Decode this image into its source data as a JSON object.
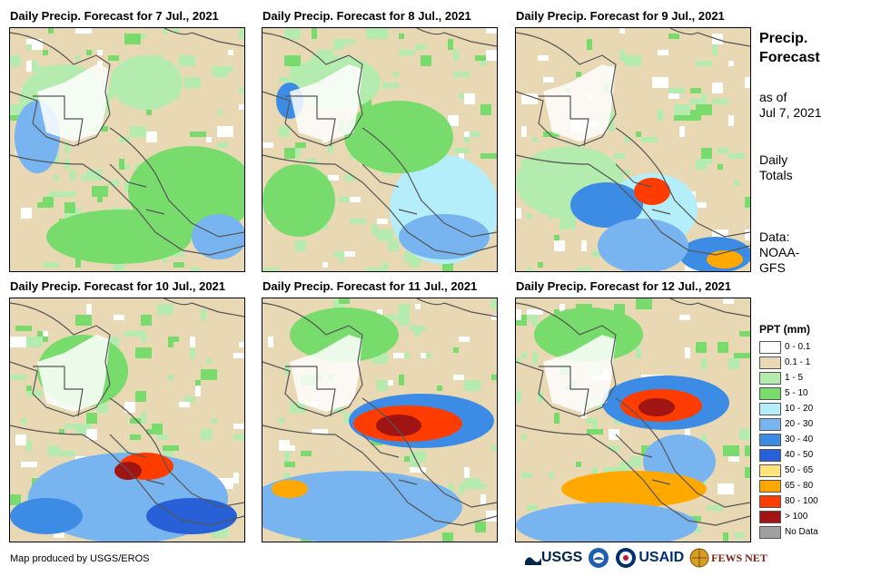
{
  "panels": [
    {
      "title": "Daily Precip. Forecast for 7 Jul., 2021"
    },
    {
      "title": "Daily Precip. Forecast for 8 Jul., 2021"
    },
    {
      "title": "Daily Precip. Forecast for 9 Jul., 2021"
    },
    {
      "title": "Daily Precip. Forecast for 10 Jul., 2021"
    },
    {
      "title": "Daily Precip. Forecast for 11 Jul., 2021"
    },
    {
      "title": "Daily Precip. Forecast for 12 Jul., 2021"
    }
  ],
  "side": {
    "title_line1": "Precip.",
    "title_line2": "Forecast",
    "asof_line1": "as of",
    "asof_line2": "Jul 7, 2021",
    "totals_line1": "Daily",
    "totals_line2": "Totals",
    "data_line1": "Data:",
    "data_line2": "NOAA-",
    "data_line3": "GFS"
  },
  "legend": {
    "title": "PPT (mm)",
    "items": [
      {
        "label": "0 - 0.1",
        "color": "#ffffff"
      },
      {
        "label": "0.1 - 1",
        "color": "#e8d8b4"
      },
      {
        "label": "1 - 5",
        "color": "#b4ecb0"
      },
      {
        "label": "5 - 10",
        "color": "#78dc6c"
      },
      {
        "label": "10 - 20",
        "color": "#b4eefa"
      },
      {
        "label": "20 - 30",
        "color": "#78b4f0"
      },
      {
        "label": "30 - 40",
        "color": "#3c8ce6"
      },
      {
        "label": "40 - 50",
        "color": "#2860d8"
      },
      {
        "label": "50 - 65",
        "color": "#ffe47c"
      },
      {
        "label": "65 - 80",
        "color": "#ffa800"
      },
      {
        "label": "80 - 100",
        "color": "#ff3c00"
      },
      {
        "label": "> 100",
        "color": "#a01414"
      },
      {
        "label": "No Data",
        "color": "#a0a0a0"
      }
    ]
  },
  "footer": {
    "credit": "Map produced by USGS/EROS"
  },
  "logos": {
    "usgs": "USGS",
    "usaid": "USAID",
    "fewsnet": "FEWS NET"
  }
}
